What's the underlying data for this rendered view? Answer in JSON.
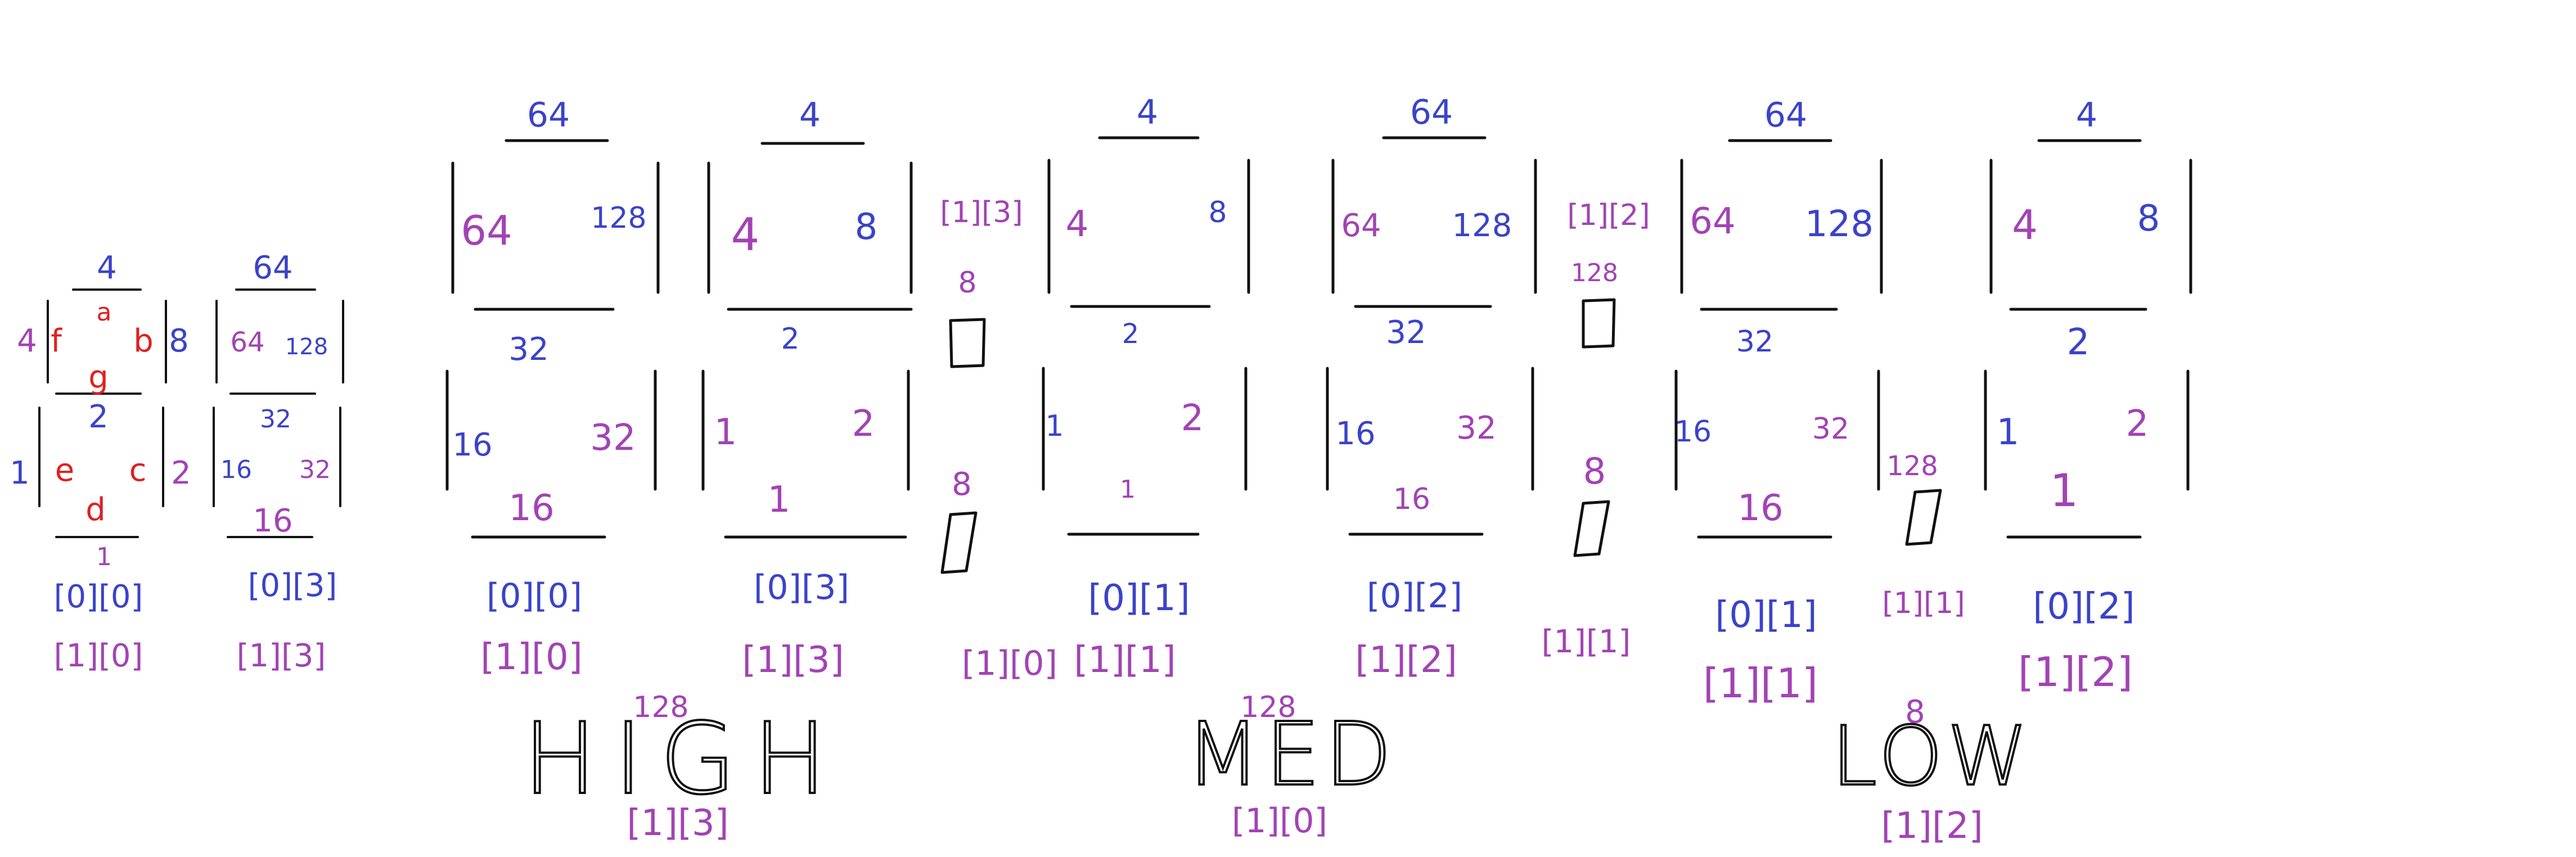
{
  "colors": {
    "ink": "#111111",
    "blue": "#3a43c8",
    "purple": "#a243b4",
    "red": "#e02020"
  },
  "legend": {
    "bits": {
      "top": "4",
      "upper_left": "4",
      "upper_right": "8",
      "middle": "2",
      "lower_left": "1",
      "lower_right": "2",
      "bottom": "1",
      "extra_top": "64",
      "extra_upper_left": "64",
      "extra_upper_right": "128",
      "extra_middle": "32",
      "extra_lower_left": "16",
      "extra_lower_right": "32",
      "extra_bottom": "16"
    },
    "segments": {
      "a": "a",
      "b": "b",
      "c": "c",
      "d": "d",
      "e": "e",
      "f": "f",
      "g": "g"
    },
    "index_a1": "[0][0]",
    "index_a2": "[1][0]",
    "index_b1": "[0][3]",
    "index_b2": "[1][3]"
  },
  "digits": [
    {
      "top": "64",
      "ul": "64",
      "ur": "128",
      "mid": "32",
      "ll": "16",
      "lr": "32",
      "bot": "16",
      "idx1": "[0][0]",
      "idx2": "[1][0]"
    },
    {
      "top": "4",
      "ul": "4",
      "ur": "8",
      "mid": "2",
      "ll": "1",
      "lr": "2",
      "bot": "1",
      "idx1": "[0][3]",
      "idx2": "[1][3]"
    },
    {
      "top": "4",
      "ul": "4",
      "ur": "8",
      "mid": "2",
      "ll": "1",
      "lr": "2",
      "bot": "1",
      "idx1": "[0][1]",
      "idx2": "[1][1]"
    },
    {
      "top": "64",
      "ul": "64",
      "ur": "128",
      "mid": "32",
      "ll": "16",
      "lr": "32",
      "bot": "16",
      "idx1": "[0][2]",
      "idx2": "[1][2]"
    },
    {
      "top": "64",
      "ul": "64",
      "ur": "128",
      "mid": "32",
      "ll": "16",
      "lr": "32",
      "bot": "16",
      "idx1": "[0][1]",
      "idx2": "[1][1]"
    },
    {
      "top": "4",
      "ul": "4",
      "ur": "8",
      "mid": "2",
      "ll": "1",
      "lr": "2",
      "bot": "1",
      "idx1": "[0][2]",
      "idx2": "[1][2]"
    }
  ],
  "colons": [
    {
      "top_index": "[1][3]",
      "top_bit": "8",
      "bottom_bit": "8",
      "bottom_index": "[1][0]"
    },
    {
      "top_index": "[1][2]",
      "top_bit": "128",
      "bottom_bit": "8",
      "bottom_index": "[1][1]"
    }
  ],
  "decimal_point": {
    "bit": "128",
    "index": "[1][1]"
  },
  "words": [
    {
      "text": "HIGH",
      "bit": "128",
      "index": "[1][3]"
    },
    {
      "text": "MED",
      "bit": "128",
      "index": "[1][0]"
    },
    {
      "text": "LOW",
      "bit": "8",
      "index": "[1][2]"
    }
  ]
}
